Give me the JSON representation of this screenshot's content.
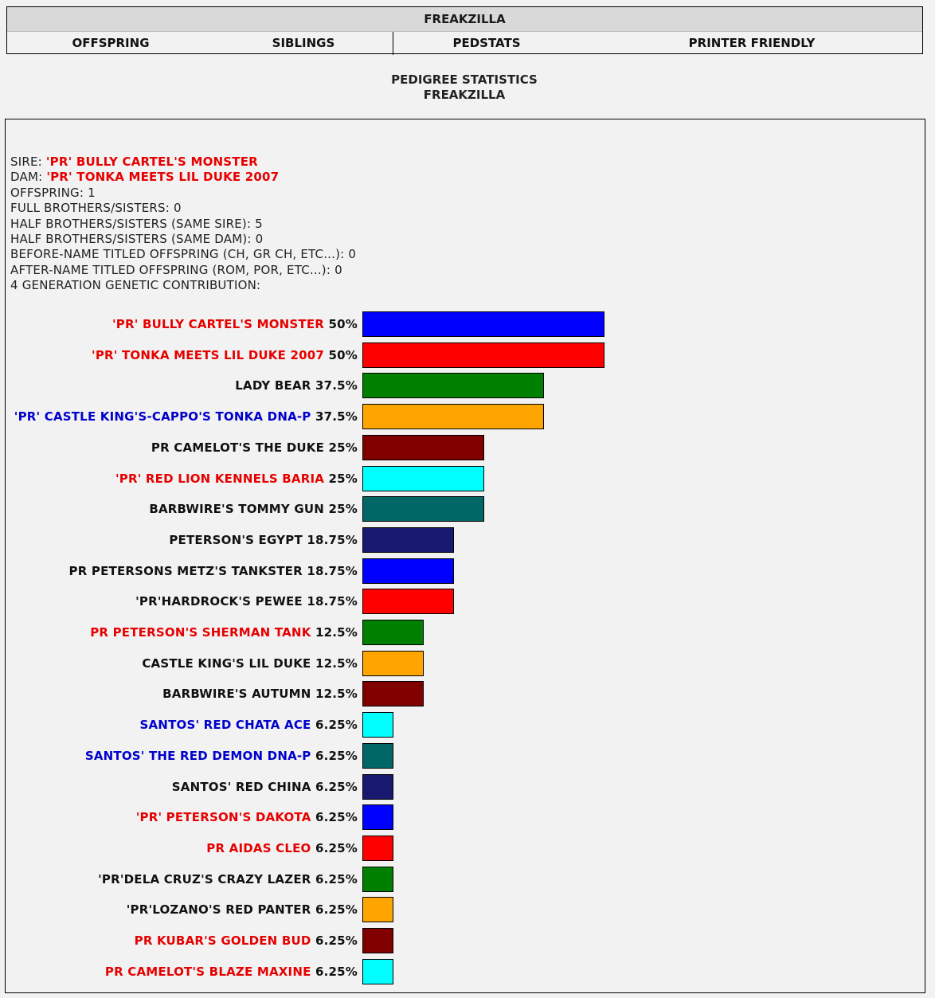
{
  "header": {
    "title": "FREAKZILLA",
    "tabs": [
      {
        "label": "OFFSPRING"
      },
      {
        "label": "SIBLINGS"
      },
      {
        "label": "PEDSTATS"
      },
      {
        "label": "PRINTER FRIENDLY"
      }
    ]
  },
  "page": {
    "heading_line1": "PEDIGREE STATISTICS",
    "heading_line2": "FREAKZILLA"
  },
  "info": {
    "sire_label": "SIRE:",
    "sire_value": "'PR' BULLY CARTEL'S MONSTER",
    "dam_label": "DAM:",
    "dam_value": "'PR' TONKA MEETS LIL DUKE 2007",
    "offspring": "OFFSPRING: 1",
    "full_siblings": "FULL BROTHERS/SISTERS: 0",
    "half_same_sire": "HALF BROTHERS/SISTERS (SAME SIRE): 5",
    "half_same_dam": "HALF BROTHERS/SISTERS (SAME DAM): 0",
    "before_titled": "BEFORE-NAME TITLED OFFSPRING (CH, GR CH, ETC...): 0",
    "after_titled": "AFTER-NAME TITLED OFFSPRING (ROM, POR, ETC...): 0",
    "genetic_heading": "4 GENERATION GENETIC CONTRIBUTION:"
  },
  "contributions": [
    {
      "name": "'PR' BULLY CARTEL'S MONSTER",
      "pct_label": "50%",
      "value": 50,
      "name_color": "red",
      "bar_color": "#0000ff"
    },
    {
      "name": "'PR' TONKA MEETS LIL DUKE 2007",
      "pct_label": "50%",
      "value": 50,
      "name_color": "red",
      "bar_color": "#ff0000"
    },
    {
      "name": "LADY BEAR",
      "pct_label": "37.5%",
      "value": 37.5,
      "name_color": "black",
      "bar_color": "#008000"
    },
    {
      "name": "'PR' CASTLE KING'S-CAPPO'S TONKA DNA-P",
      "pct_label": "37.5%",
      "value": 37.5,
      "name_color": "blue",
      "bar_color": "#ffa500"
    },
    {
      "name": "PR CAMELOT'S THE DUKE",
      "pct_label": "25%",
      "value": 25,
      "name_color": "black",
      "bar_color": "#800000"
    },
    {
      "name": "'PR' RED LION KENNELS BARIA",
      "pct_label": "25%",
      "value": 25,
      "name_color": "red",
      "bar_color": "#00ffff"
    },
    {
      "name": "BARBWIRE'S TOMMY GUN",
      "pct_label": "25%",
      "value": 25,
      "name_color": "black",
      "bar_color": "#006666"
    },
    {
      "name": "PETERSON'S EGYPT",
      "pct_label": "18.75%",
      "value": 18.75,
      "name_color": "black",
      "bar_color": "#191970"
    },
    {
      "name": "PR PETERSONS METZ'S TANKSTER",
      "pct_label": "18.75%",
      "value": 18.75,
      "name_color": "black",
      "bar_color": "#0000ff"
    },
    {
      "name": "'PR'HARDROCK'S PEWEE",
      "pct_label": "18.75%",
      "value": 18.75,
      "name_color": "black",
      "bar_color": "#ff0000"
    },
    {
      "name": "PR PETERSON'S SHERMAN TANK",
      "pct_label": "12.5%",
      "value": 12.5,
      "name_color": "red",
      "bar_color": "#008000"
    },
    {
      "name": "CASTLE KING'S LIL DUKE",
      "pct_label": "12.5%",
      "value": 12.5,
      "name_color": "black",
      "bar_color": "#ffa500"
    },
    {
      "name": "BARBWIRE'S AUTUMN",
      "pct_label": "12.5%",
      "value": 12.5,
      "name_color": "black",
      "bar_color": "#800000"
    },
    {
      "name": "SANTOS' RED CHATA ACE",
      "pct_label": "6.25%",
      "value": 6.25,
      "name_color": "blue",
      "bar_color": "#00ffff"
    },
    {
      "name": "SANTOS' THE RED DEMON DNA-P",
      "pct_label": "6.25%",
      "value": 6.25,
      "name_color": "blue",
      "bar_color": "#006666"
    },
    {
      "name": "SANTOS' RED CHINA",
      "pct_label": "6.25%",
      "value": 6.25,
      "name_color": "black",
      "bar_color": "#191970"
    },
    {
      "name": "'PR' PETERSON'S DAKOTA",
      "pct_label": "6.25%",
      "value": 6.25,
      "name_color": "red",
      "bar_color": "#0000ff"
    },
    {
      "name": "PR AIDAS CLEO",
      "pct_label": "6.25%",
      "value": 6.25,
      "name_color": "red",
      "bar_color": "#ff0000"
    },
    {
      "name": "'PR'DELA CRUZ'S CRAZY LAZER",
      "pct_label": "6.25%",
      "value": 6.25,
      "name_color": "black",
      "bar_color": "#008000"
    },
    {
      "name": "'PR'LOZANO'S RED PANTER",
      "pct_label": "6.25%",
      "value": 6.25,
      "name_color": "black",
      "bar_color": "#ffa500"
    },
    {
      "name": "PR KUBAR'S GOLDEN BUD",
      "pct_label": "6.25%",
      "value": 6.25,
      "name_color": "red",
      "bar_color": "#800000"
    },
    {
      "name": "PR CAMELOT'S BLAZE MAXINE",
      "pct_label": "6.25%",
      "value": 6.25,
      "name_color": "red",
      "bar_color": "#00ffff"
    }
  ]
}
